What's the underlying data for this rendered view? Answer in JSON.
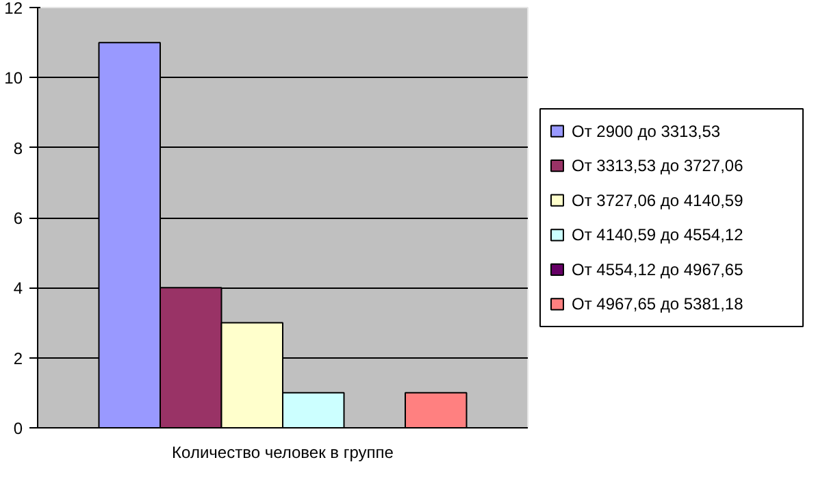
{
  "chart_data": {
    "type": "bar",
    "categories": [
      "Количество человек в группе"
    ],
    "series": [
      {
        "name": "От 2900 до 3313,53",
        "color": "#9999ff",
        "values": [
          11
        ]
      },
      {
        "name": "От 3313,53 до 3727,06",
        "color": "#993366",
        "values": [
          4
        ]
      },
      {
        "name": "От 3727,06 до 4140,59",
        "color": "#ffffcc",
        "values": [
          3
        ]
      },
      {
        "name": "От 4140,59 до 4554,12",
        "color": "#ccffff",
        "values": [
          1
        ]
      },
      {
        "name": "От 4554,12 до 4967,65",
        "color": "#660066",
        "values": [
          0
        ]
      },
      {
        "name": "От 4967,65 до 5381,18",
        "color": "#ff8080",
        "values": [
          1
        ]
      }
    ],
    "ylim": [
      0,
      12
    ],
    "yticks": [
      0,
      2,
      4,
      6,
      8,
      10,
      12
    ],
    "grid": "y",
    "legend": "right"
  }
}
